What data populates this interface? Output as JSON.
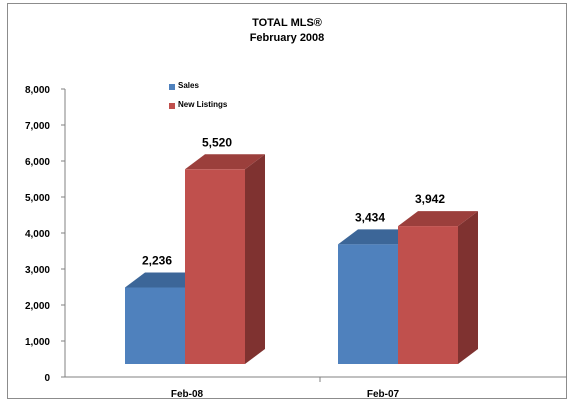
{
  "chart_data": {
    "type": "bar",
    "title": "TOTAL MLS®",
    "subtitle": "February 2008",
    "categories": [
      "Feb-08",
      "Feb-07"
    ],
    "series": [
      {
        "name": "Sales",
        "values": [
          2236,
          3434
        ],
        "labels": [
          "2,236",
          "3,434"
        ],
        "color": "#4f81bd",
        "top_color": "#3c6698",
        "side_color": "#385d8a"
      },
      {
        "name": "New Listings",
        "values": [
          5520,
          3942
        ],
        "labels": [
          "5,520",
          "3,942"
        ],
        "color": "#c0504d",
        "top_color": "#9b3f3c",
        "side_color": "#7f3230"
      }
    ],
    "yticks": [
      "0",
      "1,000",
      "2,000",
      "3,000",
      "4,000",
      "5,000",
      "6,000",
      "7,000",
      "8,000"
    ],
    "ylim": [
      0,
      8000
    ],
    "legend_position": "top-left",
    "grid": false,
    "three_d": true
  }
}
